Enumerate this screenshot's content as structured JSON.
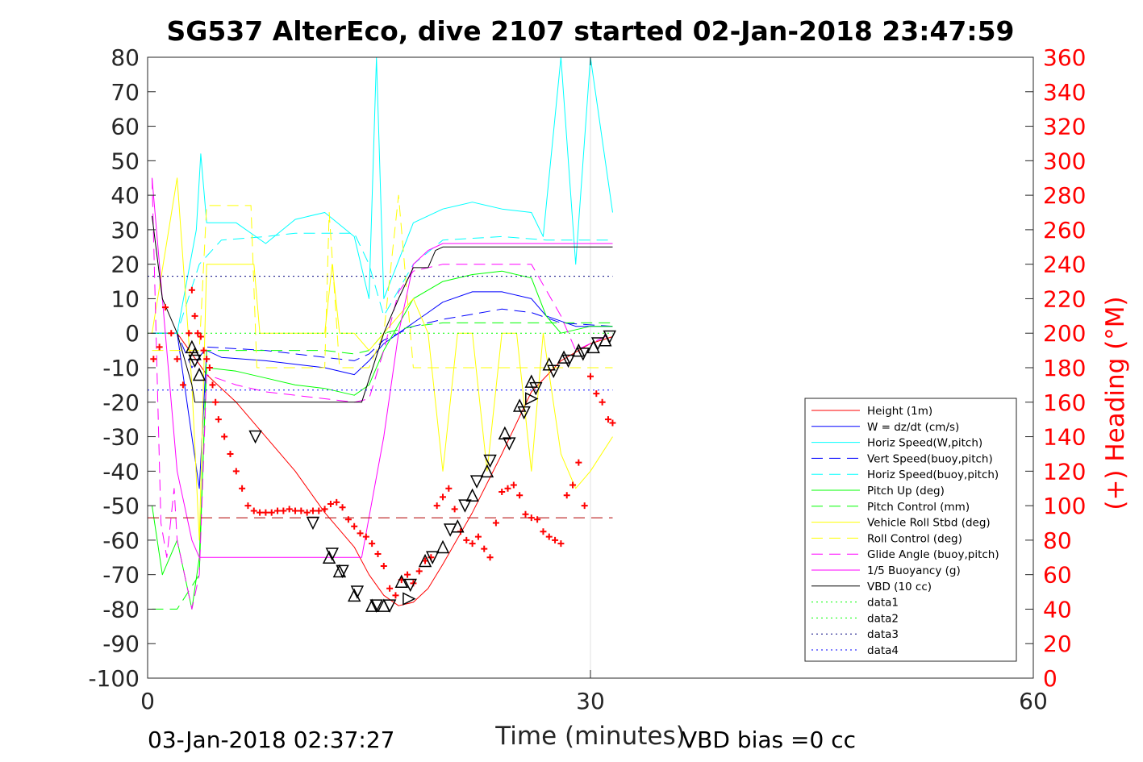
{
  "figure": {
    "title": "SG537 AlterEco, dive 2107 started 02-Jan-2018 23:47:59",
    "footer_left": "03-Jan-2018 02:37:27",
    "footer_right": "VBD bias =0 cc"
  },
  "chart_data": {
    "type": "line",
    "title": "SG537 AlterEco, dive 2107 started 02-Jan-2018 23:47:59",
    "xlabel": "Time (minutes)",
    "ylabel": "",
    "ylabel_right": "(+) Heading (°M)",
    "xlim": [
      0,
      60
    ],
    "ylim": [
      -100,
      80
    ],
    "ylim_right": [
      0,
      360
    ],
    "xticks": [
      "0",
      "30",
      "60"
    ],
    "yticks": [
      "80",
      "70",
      "60",
      "50",
      "40",
      "30",
      "20",
      "10",
      "0",
      "-10",
      "-20",
      "-30",
      "-40",
      "-50",
      "-60",
      "-70",
      "-80",
      "-90",
      "-100"
    ],
    "yticks_right": [
      "360",
      "340",
      "320",
      "300",
      "280",
      "260",
      "240",
      "220",
      "200",
      "180",
      "160",
      "140",
      "120",
      "100",
      "80",
      "60",
      "40",
      "20",
      "0"
    ],
    "grid": "x=30 only",
    "legend_position": "lower-right",
    "legend": [
      {
        "name": "Height (1m)",
        "color": "#ff0000",
        "style": "solid"
      },
      {
        "name": "W = dz/dt (cm/s)",
        "color": "#0000ff",
        "style": "solid"
      },
      {
        "name": "Horiz Speed(W,pitch)",
        "color": "#00ffff",
        "style": "solid"
      },
      {
        "name": "Vert Speed(buoy,pitch)",
        "color": "#0000ff",
        "style": "dashed"
      },
      {
        "name": "Horiz Speed(buoy,pitch)",
        "color": "#00ffff",
        "style": "dashed"
      },
      {
        "name": "Pitch Up (deg)",
        "color": "#00ff00",
        "style": "solid"
      },
      {
        "name": "Pitch Control (mm)",
        "color": "#00ff00",
        "style": "dashed"
      },
      {
        "name": "Vehicle Roll Stbd (deg)",
        "color": "#ffff00",
        "style": "solid"
      },
      {
        "name": "Roll Control (deg)",
        "color": "#ffff00",
        "style": "dashed"
      },
      {
        "name": "Glide Angle (buoy,pitch)",
        "color": "#ff00ff",
        "style": "dashed"
      },
      {
        "name": "1/5 Buoyancy (g)",
        "color": "#ff00ff",
        "style": "solid"
      },
      {
        "name": "VBD (10 cc)",
        "color": "#000000",
        "style": "solid"
      },
      {
        "name": "data1",
        "color": "#00ff00",
        "style": "dotted"
      },
      {
        "name": "data2",
        "color": "#00ff00",
        "style": "dotted"
      },
      {
        "name": "data3",
        "color": "#00007f",
        "style": "dotted"
      },
      {
        "name": "data4",
        "color": "#0000ff",
        "style": "dotted"
      }
    ],
    "series": [
      {
        "name": "Height (1m)",
        "x": [
          0.2,
          2,
          4,
          6,
          8,
          10,
          12,
          14,
          15,
          16,
          17,
          18,
          19,
          20,
          22,
          24,
          26,
          28,
          30,
          31.5
        ],
        "y": [
          0,
          0,
          -12,
          -20,
          -30,
          -40,
          -52,
          -62,
          -70,
          -76,
          -79,
          -78,
          -74,
          -67,
          -52,
          -35,
          -17,
          -8,
          -3,
          -1
        ]
      },
      {
        "name": "W = dz/dt (cm/s)",
        "x": [
          0.3,
          2,
          3,
          3.5,
          4,
          5,
          8,
          12,
          14,
          15,
          16,
          17,
          18,
          19,
          20,
          22,
          24,
          26,
          27,
          29,
          31.5
        ],
        "y": [
          0,
          0,
          -30,
          -45,
          -5,
          -7,
          -8,
          -10,
          -12,
          -8,
          -3,
          0,
          3,
          6,
          9,
          12,
          12,
          10,
          5,
          2,
          2
        ]
      },
      {
        "name": "Horiz Speed(W,pitch)",
        "x": [
          0.3,
          2,
          3.3,
          3.6,
          4,
          6,
          8,
          10,
          12,
          14,
          15,
          15.5,
          16,
          18,
          20,
          22,
          24,
          26,
          26.8,
          28,
          29,
          30,
          31.5
        ],
        "y": [
          0,
          0,
          30,
          52,
          32,
          32,
          26,
          33,
          35,
          28,
          10,
          80,
          10,
          32,
          36,
          38,
          36,
          35,
          28,
          80,
          20,
          80,
          35
        ]
      },
      {
        "name": "Vert Speed(buoy,pitch)",
        "x": [
          0.3,
          2,
          3,
          4,
          8,
          12,
          14,
          15,
          16,
          18,
          20,
          24,
          26,
          28,
          31.5
        ],
        "y": [
          0,
          0,
          -10,
          -4,
          -5,
          -7,
          -8,
          -6,
          -2,
          2,
          4,
          7,
          6,
          3,
          2
        ]
      },
      {
        "name": "Horiz Speed(buoy,pitch)",
        "x": [
          0.3,
          2,
          3.5,
          5,
          8,
          10,
          12,
          14,
          15,
          16,
          18,
          20,
          24,
          27,
          31.5
        ],
        "y": [
          0,
          0,
          20,
          27,
          28,
          29,
          29,
          29,
          20,
          5,
          20,
          27,
          28,
          27,
          27
        ]
      },
      {
        "name": "Pitch Up (deg)",
        "x": [
          0.3,
          1,
          2,
          3,
          3.5,
          4,
          6,
          8,
          10,
          12,
          14,
          15,
          16,
          18,
          20,
          22,
          24,
          26,
          27,
          28,
          30,
          31.5
        ],
        "y": [
          -50,
          -70,
          -60,
          -80,
          -65,
          -10,
          -11,
          -13,
          -15,
          -16,
          -18,
          -15,
          -5,
          10,
          15,
          17,
          18,
          16,
          5,
          0,
          2,
          2
        ]
      },
      {
        "name": "Pitch Control (mm)",
        "x": [
          0.3,
          2,
          3.5,
          4,
          8,
          12,
          14,
          15,
          16,
          18,
          20,
          24,
          27,
          31.5
        ],
        "y": [
          -80,
          -80,
          -70,
          -5,
          -5,
          -5,
          -6,
          -5,
          0,
          2,
          3,
          3,
          3,
          3
        ]
      },
      {
        "name": "Vehicle Roll Stbd (deg)",
        "x": [
          0.3,
          2,
          3,
          3.5,
          4,
          6,
          7.2,
          7.6,
          10,
          12,
          12.5,
          13,
          14,
          15,
          16,
          18,
          19,
          20,
          21,
          22,
          23,
          24,
          25,
          26,
          26.8,
          28,
          29,
          30,
          31.5
        ],
        "y": [
          0,
          45,
          -15,
          -60,
          20,
          20,
          20,
          0,
          0,
          0,
          20,
          0,
          0,
          -5,
          0,
          10,
          0,
          -40,
          0,
          0,
          -40,
          0,
          0,
          -40,
          0,
          -35,
          -45,
          -40,
          -30
        ]
      },
      {
        "name": "Roll Control (deg)",
        "x": [
          0.3,
          2,
          3.5,
          4,
          7,
          7.4,
          10,
          12,
          12.3,
          13,
          15,
          16,
          17,
          18,
          19,
          20,
          22,
          24,
          26,
          28,
          30,
          31.5
        ],
        "y": [
          -5,
          -5,
          -5,
          37,
          37,
          -10,
          -10,
          -10,
          35,
          -10,
          -10,
          0,
          40,
          -10,
          -10,
          -10,
          -10,
          -10,
          -10,
          -10,
          -10,
          -10
        ]
      },
      {
        "name": "Glide Angle (buoy,pitch)",
        "x": [
          0.3,
          0.9,
          1.3,
          1.8,
          2,
          3,
          3.5,
          4,
          6,
          8,
          10,
          12,
          14,
          15,
          16,
          17,
          18,
          20,
          22,
          24,
          26,
          28,
          29,
          31.5
        ],
        "y": [
          45,
          -55,
          -65,
          -45,
          -60,
          -80,
          -70,
          -12,
          -15,
          -17,
          -18,
          -19,
          -20,
          -19,
          -5,
          12,
          18,
          20,
          20,
          20,
          20,
          5,
          -5,
          0
        ]
      },
      {
        "name": "1/5 Buoyancy (g)",
        "x": [
          0.3,
          1,
          2,
          3,
          3.5,
          8,
          12,
          14.5,
          16,
          17,
          18,
          19,
          20,
          26,
          28,
          31.5
        ],
        "y": [
          45,
          10,
          -40,
          -60,
          -65,
          -65,
          -65,
          -65,
          -30,
          0,
          20,
          24,
          26,
          26,
          26,
          26
        ]
      },
      {
        "name": "VBD (10 cc)",
        "x": [
          0.3,
          1,
          2,
          3,
          3.2,
          8,
          12,
          14.5,
          16,
          17,
          18,
          19,
          19.5,
          20,
          26,
          31.5
        ],
        "y": [
          34,
          10,
          0,
          -15,
          -20,
          -20,
          -20,
          -20,
          0,
          10,
          19,
          19,
          24,
          25,
          25,
          25
        ]
      },
      {
        "name": "data1",
        "x": [
          0,
          31.5
        ],
        "y": [
          0,
          0
        ]
      },
      {
        "name": "data3",
        "x": [
          0,
          31.5
        ],
        "y": [
          16.5,
          16.5
        ]
      },
      {
        "name": "data4",
        "x": [
          0,
          31.5
        ],
        "y": [
          -16.5,
          -16.5
        ]
      },
      {
        "name": "red dashed reference",
        "x": [
          0,
          31.5
        ],
        "y": [
          -53.5,
          -53.5
        ]
      }
    ],
    "heading_points": {
      "name": "(+) Heading (°M)",
      "x": [
        0.4,
        0.8,
        1.2,
        1.6,
        2.0,
        2.4,
        2.8,
        3.0,
        3.2,
        3.4,
        3.6,
        3.8,
        4.0,
        4.2,
        4.4,
        4.6,
        4.8,
        5.2,
        5.6,
        6.0,
        6.4,
        6.8,
        7.2,
        7.6,
        8.0,
        8.4,
        8.8,
        9.2,
        9.6,
        10.0,
        10.4,
        10.8,
        11.2,
        11.6,
        12.0,
        12.4,
        12.8,
        13.2,
        13.6,
        14.0,
        14.4,
        14.8,
        15.2,
        15.6,
        16.0,
        16.4,
        16.8,
        17.2,
        17.6,
        18.0,
        18.4,
        18.8,
        19.2,
        19.6,
        20.0,
        20.4,
        20.8,
        21.2,
        21.6,
        22.0,
        22.4,
        22.8,
        23.2,
        23.6,
        24.0,
        24.4,
        24.8,
        25.2,
        25.6,
        26.0,
        26.4,
        26.8,
        27.2,
        27.6,
        28.0,
        28.4,
        28.8,
        29.2,
        29.6,
        30.0,
        30.4,
        30.8,
        31.2,
        31.5
      ],
      "y": [
        185,
        192,
        215,
        200,
        185,
        170,
        200,
        225,
        210,
        200,
        198,
        190,
        185,
        180,
        170,
        160,
        150,
        140,
        130,
        120,
        110,
        100,
        97,
        96,
        96,
        96,
        97,
        97,
        98,
        97,
        97,
        96,
        97,
        97,
        98,
        101,
        102,
        99,
        92,
        88,
        84,
        82,
        78,
        72,
        65,
        52,
        48,
        57,
        60,
        55,
        62,
        68,
        70,
        100,
        105,
        110,
        98,
        85,
        80,
        78,
        82,
        75,
        70,
        90,
        108,
        110,
        112,
        106,
        95,
        93,
        92,
        85,
        82,
        80,
        78,
        106,
        112,
        125,
        100,
        175,
        165,
        160,
        150,
        148
      ]
    },
    "markers": {
      "down_triangles": {
        "x": [
          3.2,
          7.3,
          11.2,
          12.5,
          13.2,
          14.2,
          15.5,
          16.4,
          17.8,
          19.3,
          20.5,
          21.5,
          22.3,
          23.2,
          24.5,
          25.5,
          26.3,
          27.5,
          28.5,
          29.5,
          30.5,
          31.3
        ],
        "y": [
          -8,
          -30,
          -55,
          -64,
          -69,
          -75,
          -79,
          -79,
          -73,
          -65,
          -57,
          -50,
          -43,
          -37,
          -32,
          -23,
          -16,
          -11,
          -8,
          -6,
          -3,
          -1
        ]
      },
      "up_triangles": {
        "x": [
          3.0,
          3.2,
          3.5,
          12.3,
          13.0,
          14.0,
          15.2,
          16.0,
          17.2,
          18.8,
          20.0,
          21.0,
          22.0,
          23.0,
          24.2,
          25.2,
          26.0,
          27.2,
          28.2,
          29.2,
          30.2,
          31.0
        ],
        "y": [
          -4,
          -6,
          -12,
          -65,
          -69,
          -76,
          -79,
          -79,
          -72,
          -66,
          -62,
          -56,
          -47,
          -40,
          -29,
          -21,
          -14,
          -9,
          -7,
          -5,
          -4,
          -2
        ]
      },
      "right_triangles": {
        "x": [
          17.7,
          26.0
        ],
        "y": [
          -77,
          -19
        ]
      }
    }
  }
}
